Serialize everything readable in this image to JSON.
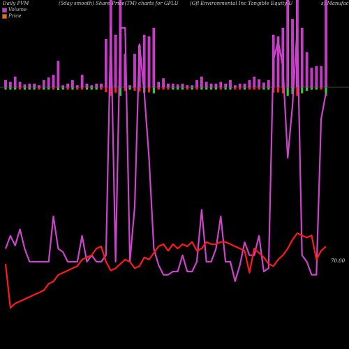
{
  "header": {
    "left": "Daily PVM",
    "mid": "(5day smooth) Share Price(TM) charts for GFLU",
    "right": "(Gfl Environmental Inc Tangible Equity U",
    "far": "s) Manufactu"
  },
  "legend": {
    "volume_label": "Volume",
    "price_label": "Price",
    "volume_color": "#cc33cc",
    "price_color": "#ff6600"
  },
  "price_label": "70.00",
  "colors": {
    "background": "#000000",
    "volume_bar": "#cc33cc",
    "volume_line": "#cc44cc",
    "price_line": "#ff1a1a",
    "up": "#33cc33",
    "down": "#ff2222"
  },
  "chart_data": {
    "type": "bar",
    "series": [
      {
        "name": "Volume",
        "values": [
          8,
          6,
          12,
          6,
          3,
          4,
          4,
          2,
          8,
          11,
          14,
          30,
          2,
          4,
          8,
          2,
          14,
          4,
          2,
          4,
          4,
          55,
          100,
          60,
          100,
          38,
          2,
          38,
          48,
          60,
          58,
          68,
          6,
          10,
          4,
          4,
          3,
          4,
          2,
          2,
          8,
          12,
          6,
          4,
          4,
          6,
          4,
          8,
          2,
          4,
          4,
          8,
          12,
          9,
          5,
          8,
          60,
          58,
          68,
          100,
          78,
          100,
          68,
          40,
          22,
          24,
          24,
          100
        ]
      },
      {
        "name": "Price",
        "values": [
          69.6,
          68.6,
          68.7,
          68.75,
          68.8,
          68.85,
          68.9,
          68.95,
          69.0,
          69.15,
          69.2,
          69.35,
          69.4,
          69.45,
          69.5,
          69.55,
          69.7,
          69.75,
          69.8,
          69.95,
          70.0,
          69.65,
          69.45,
          69.5,
          69.6,
          69.7,
          69.65,
          69.5,
          69.55,
          69.75,
          69.7,
          69.85,
          70.0,
          70.05,
          69.9,
          70.05,
          69.95,
          70.05,
          70.0,
          70.1,
          69.9,
          69.95,
          70.1,
          70.05,
          70.05,
          70.1,
          70.1,
          70.05,
          70.0,
          69.95,
          69.9,
          69.4,
          69.95,
          69.85,
          69.75,
          69.6,
          69.55,
          69.7,
          69.8,
          69.95,
          70.15,
          70.3,
          70.25,
          70.2,
          70.25,
          69.7,
          69.9,
          70.0
        ]
      }
    ],
    "volume_line": [
      32,
      36,
      33,
      38,
      32,
      28,
      28,
      28,
      28,
      28,
      42,
      32,
      31,
      28,
      28,
      28,
      36,
      28,
      30,
      28,
      28,
      30,
      100,
      28,
      100,
      100,
      28,
      45,
      95,
      80,
      60,
      32,
      27,
      24,
      24,
      25,
      25,
      30,
      25,
      25,
      28,
      44,
      28,
      28,
      32,
      42,
      28,
      28,
      22,
      27,
      34,
      30,
      30,
      36,
      25,
      26,
      90,
      96,
      88,
      60,
      76,
      100,
      30,
      28,
      24,
      24,
      72,
      80
    ],
    "bar_direction": [
      1,
      1,
      1,
      -1,
      1,
      1,
      1,
      -1,
      1,
      1,
      -1,
      1,
      1,
      -1,
      1,
      -1,
      -1,
      1,
      1,
      1,
      -1,
      -1,
      -1,
      -1,
      1,
      -1,
      1,
      -1,
      -1,
      1,
      -1,
      1,
      -1,
      -1,
      -1,
      1,
      1,
      1,
      -1,
      1,
      -1,
      1,
      1,
      1,
      1,
      -1,
      1,
      1,
      -1,
      -1,
      1,
      -1,
      -1,
      -1,
      1,
      1,
      -1,
      -1,
      -1,
      1,
      1,
      -1,
      1,
      1,
      1,
      1,
      -1,
      1
    ],
    "ylim_price": [
      68.3,
      71.0
    ],
    "xlabel": "",
    "ylabel": ""
  }
}
